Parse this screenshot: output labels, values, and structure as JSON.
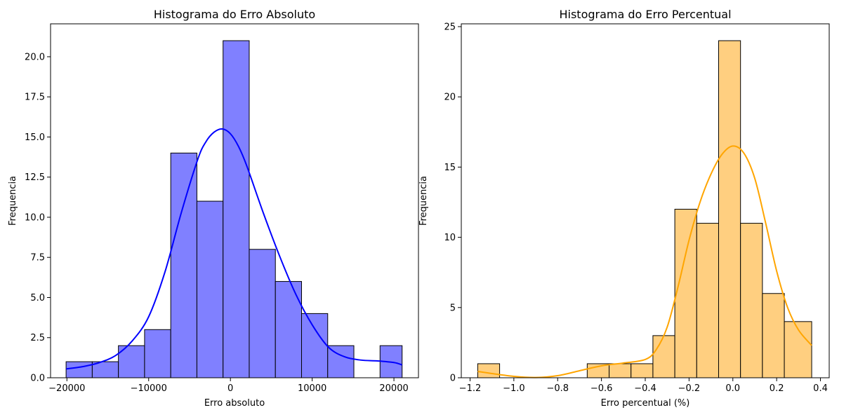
{
  "chart_data": [
    {
      "type": "bar",
      "title": "Histograma do Erro Absoluto",
      "xlabel": "Erro absoluto",
      "ylabel": "Frequencia",
      "xlim": [
        -22000,
        23000
      ],
      "ylim": [
        0,
        22.05
      ],
      "xticks": [
        -20000,
        -10000,
        0,
        10000,
        20000
      ],
      "xtick_labels": [
        "−20000",
        "−10000",
        "0",
        "10000",
        "20000"
      ],
      "yticks": [
        0,
        2.5,
        5,
        7.5,
        10,
        12.5,
        15,
        17.5,
        20
      ],
      "ytick_labels": [
        "0.0",
        "2.5",
        "5.0",
        "7.5",
        "10.0",
        "12.5",
        "15.0",
        "17.5",
        "20.0"
      ],
      "bin_edges": [
        -20100,
        -16900,
        -13700,
        -10500,
        -7300,
        -4100,
        -900,
        2300,
        5500,
        8700,
        11900,
        15100,
        18300,
        21000
      ],
      "values": [
        1,
        1,
        2,
        3,
        14,
        11,
        21,
        8,
        6,
        4,
        2,
        0,
        2
      ],
      "bar_color": "#8080ff",
      "edge_color": "#000000",
      "kde": {
        "color": "#0000ff",
        "x": [
          -20100,
          -18000,
          -16000,
          -14000,
          -12000,
          -10000,
          -8000,
          -6000,
          -4000,
          -3000,
          -2000,
          -1000,
          0,
          1000,
          2000,
          4000,
          6000,
          8000,
          10000,
          12000,
          14000,
          16000,
          18000,
          20000,
          21000
        ],
        "y": [
          0.55,
          0.7,
          0.95,
          1.4,
          2.3,
          3.8,
          6.6,
          10.3,
          13.6,
          14.7,
          15.3,
          15.5,
          15.2,
          14.4,
          13.2,
          10.3,
          7.6,
          5.2,
          3.3,
          1.9,
          1.3,
          1.1,
          1.05,
          0.95,
          0.8
        ]
      }
    },
    {
      "type": "bar",
      "title": "Histograma do Erro Percentual",
      "xlabel": "Erro percentual (%)",
      "ylabel": "Frequencia",
      "xlim": [
        -1.24,
        0.44
      ],
      "ylim": [
        0,
        25.2
      ],
      "xticks": [
        -1.2,
        -1.0,
        -0.8,
        -0.6,
        -0.4,
        -0.2,
        0.0,
        0.2,
        0.4
      ],
      "xtick_labels": [
        "−1.2",
        "−1.0",
        "−0.8",
        "−0.6",
        "−0.4",
        "−0.2",
        "0.0",
        "0.2",
        "0.4"
      ],
      "yticks": [
        0,
        5,
        10,
        15,
        20,
        25
      ],
      "ytick_labels": [
        "0",
        "5",
        "10",
        "15",
        "20",
        "25"
      ],
      "bin_edges": [
        -1.165,
        -1.065,
        -0.965,
        -0.865,
        -0.765,
        -0.665,
        -0.565,
        -0.465,
        -0.365,
        -0.265,
        -0.165,
        -0.065,
        0.035,
        0.135,
        0.235,
        0.36
      ],
      "values": [
        1,
        0,
        0,
        0,
        0,
        1,
        1,
        1,
        3,
        12,
        11,
        24,
        11,
        6,
        4
      ],
      "bar_color": "#ffcf80",
      "edge_color": "#000000",
      "kde": {
        "color": "#ffa500",
        "x": [
          -1.165,
          -1.1,
          -1.0,
          -0.9,
          -0.8,
          -0.7,
          -0.6,
          -0.5,
          -0.4,
          -0.35,
          -0.3,
          -0.25,
          -0.2,
          -0.15,
          -0.1,
          -0.05,
          0.0,
          0.05,
          0.1,
          0.15,
          0.2,
          0.25,
          0.3,
          0.36
        ],
        "y": [
          0.45,
          0.3,
          0.1,
          0.02,
          0.15,
          0.5,
          0.85,
          1.05,
          1.3,
          2.0,
          3.6,
          6.5,
          9.8,
          12.5,
          14.5,
          15.9,
          16.5,
          16.0,
          14.2,
          11.0,
          7.6,
          5.0,
          3.4,
          2.3
        ]
      }
    }
  ]
}
